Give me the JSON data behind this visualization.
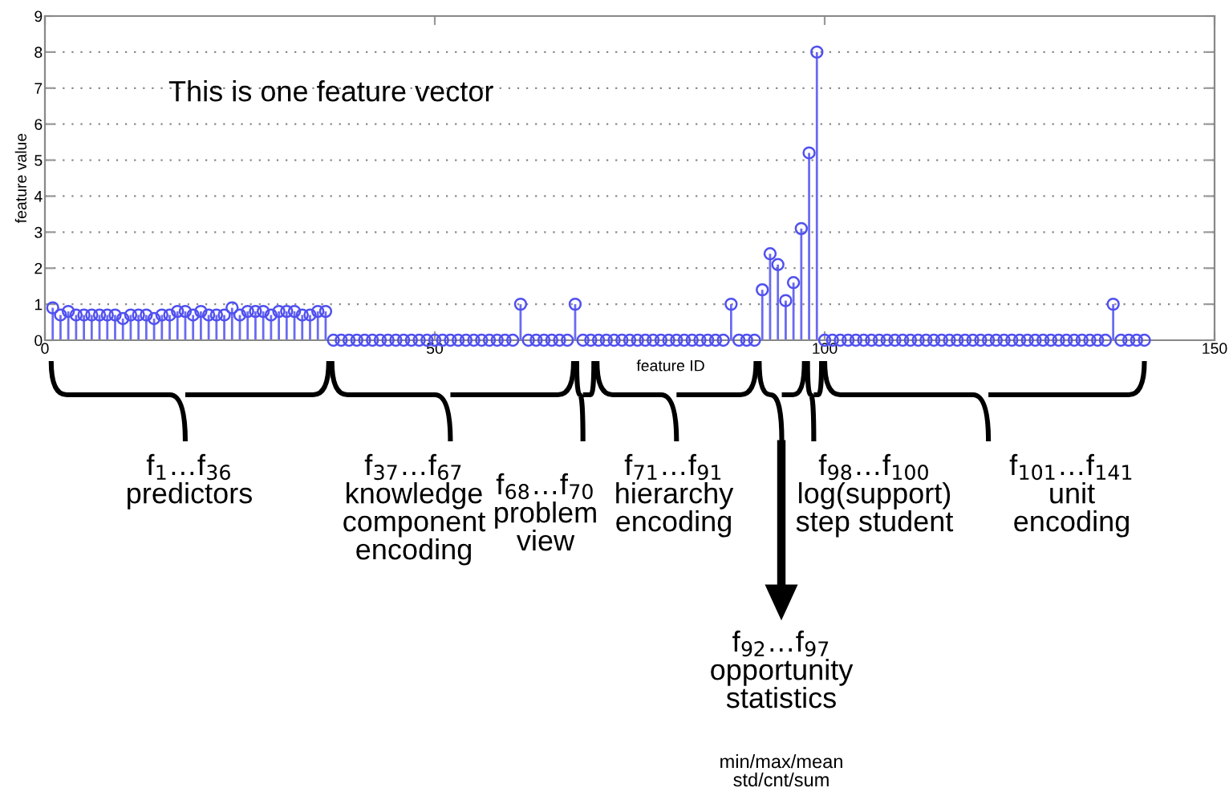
{
  "chart_data": {
    "type": "lollipop",
    "xlabel": "feature ID",
    "ylabel": "feature value",
    "x": [
      1,
      2,
      3,
      4,
      5,
      6,
      7,
      8,
      9,
      10,
      11,
      12,
      13,
      14,
      15,
      16,
      17,
      18,
      19,
      20,
      21,
      22,
      23,
      24,
      25,
      26,
      27,
      28,
      29,
      30,
      31,
      32,
      33,
      34,
      35,
      36,
      37,
      38,
      39,
      40,
      41,
      42,
      43,
      44,
      45,
      46,
      47,
      48,
      49,
      50,
      51,
      52,
      53,
      54,
      55,
      56,
      57,
      58,
      59,
      60,
      61,
      62,
      63,
      64,
      65,
      66,
      67,
      68,
      69,
      70,
      71,
      72,
      73,
      74,
      75,
      76,
      77,
      78,
      79,
      80,
      81,
      82,
      83,
      84,
      85,
      86,
      87,
      88,
      89,
      90,
      91,
      92,
      93,
      94,
      95,
      96,
      97,
      98,
      99,
      100,
      101,
      102,
      103,
      104,
      105,
      106,
      107,
      108,
      109,
      110,
      111,
      112,
      113,
      114,
      115,
      116,
      117,
      118,
      119,
      120,
      121,
      122,
      123,
      124,
      125,
      126,
      127,
      128,
      129,
      130,
      131,
      132,
      133,
      134,
      135,
      136,
      137,
      138,
      139,
      140,
      141
    ],
    "series": [
      {
        "color": "#5050f0",
        "values": [
          0.9,
          0.7,
          0.8,
          0.7,
          0.7,
          0.7,
          0.7,
          0.7,
          0.7,
          0.6,
          0.7,
          0.7,
          0.7,
          0.6,
          0.7,
          0.7,
          0.8,
          0.8,
          0.7,
          0.8,
          0.7,
          0.7,
          0.7,
          0.9,
          0.7,
          0.8,
          0.8,
          0.8,
          0.7,
          0.8,
          0.8,
          0.8,
          0.7,
          0.7,
          0.8,
          0.8,
          0,
          0,
          0,
          0,
          0,
          0,
          0,
          0,
          0,
          0,
          0,
          0,
          0,
          0,
          0,
          0,
          0,
          0,
          0,
          0,
          0,
          0,
          0,
          0,
          1,
          0,
          0,
          0,
          0,
          0,
          0,
          1,
          0,
          0,
          0,
          0,
          0,
          0,
          0,
          0,
          0,
          0,
          0,
          0,
          0,
          0,
          0,
          0,
          0,
          0,
          0,
          1,
          0,
          0,
          0,
          1.4,
          2.4,
          2.1,
          1.1,
          1.6,
          3.1,
          5.2,
          8,
          0,
          0,
          0,
          0,
          0,
          0,
          0,
          0,
          0,
          0,
          0,
          0,
          0,
          0,
          0,
          0,
          0,
          0,
          0,
          0,
          0,
          0,
          0,
          0,
          0,
          0,
          0,
          0,
          0,
          0,
          0,
          0,
          0,
          0,
          0,
          0,
          0,
          1,
          0,
          0,
          0,
          0
        ]
      }
    ],
    "xlim": [
      0,
      150
    ],
    "xticks": [
      0,
      50,
      100,
      150
    ],
    "ylim": [
      0,
      9
    ],
    "yticks": [
      0,
      1,
      2,
      3,
      4,
      5,
      6,
      7,
      8,
      9
    ],
    "grid": "y",
    "marker": "circle",
    "line_style": "solid",
    "annotations": [
      "This is one feature vector",
      "f$_{1}$…f$_{36}$\npredictors",
      "f$_{37}$…f$_{67}$\nknowledge\ncomponent\nencoding",
      "f$_{68}$…f$_{70}$\nproblem\nview",
      "f$_{71}$…f$_{91}$\nhierarchy\nencoding",
      "f$_{92}$…f$_{97}$\nopportunity\nstatistics",
      "min/max/mean\nstd/cnt/sum",
      "f$_{98}$…f$_{100}$\nlog(support)\nstep student",
      "f$_{101}$…f$_{141}$\nunit\nencoding"
    ]
  }
}
